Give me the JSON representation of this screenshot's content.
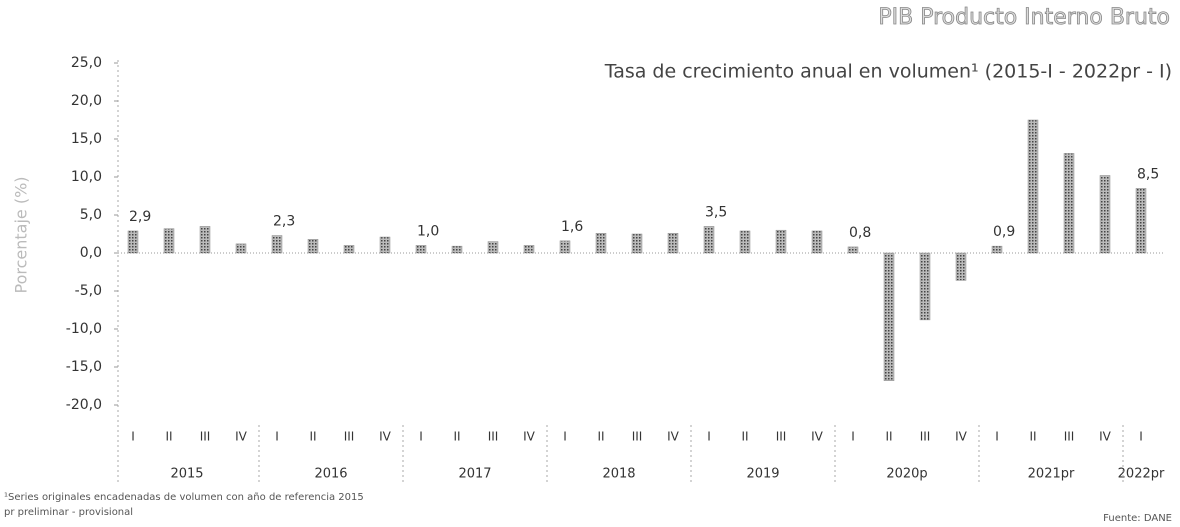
{
  "chart_data": {
    "type": "bar",
    "title": "PIB Producto Interno Bruto",
    "subtitle": "Tasa de crecimiento anual en volumen¹ (2015-I - 2022pr - I)",
    "y_label": "Porcentaje (%)",
    "categories": [
      "I",
      "II",
      "III",
      "IV",
      "I",
      "II",
      "III",
      "IV",
      "I",
      "II",
      "III",
      "IV",
      "I",
      "II",
      "III",
      "IV",
      "I",
      "II",
      "III",
      "IV",
      "I",
      "II",
      "III",
      "IV",
      "I",
      "II",
      "III",
      "IV",
      "I"
    ],
    "year_groups": [
      "2015",
      "2016",
      "2017",
      "2018",
      "2019",
      "2020p",
      "2021pr",
      "2022pr"
    ],
    "values": [
      2.9,
      3.2,
      3.5,
      1.2,
      2.3,
      1.8,
      1.0,
      2.1,
      1.0,
      0.9,
      1.5,
      1.0,
      1.6,
      2.6,
      2.5,
      2.6,
      3.5,
      2.9,
      3.0,
      2.9,
      0.8,
      -16.8,
      -8.8,
      -3.6,
      0.9,
      17.5,
      13.1,
      10.2,
      8.5
    ],
    "value_labels": [
      "2,9",
      null,
      null,
      null,
      "2,3",
      null,
      null,
      null,
      "1,0",
      null,
      null,
      null,
      "1,6",
      null,
      null,
      null,
      "3,5",
      null,
      null,
      null,
      "0,8",
      null,
      null,
      null,
      "0,9",
      null,
      null,
      null,
      "8,5"
    ],
    "color": "#8a8a8a",
    "ylim": [
      -20,
      25
    ],
    "yticks": [
      {
        "value": 25,
        "label": "25,0"
      },
      {
        "value": 20,
        "label": "20,0"
      },
      {
        "value": 15,
        "label": "15,0"
      },
      {
        "value": 10,
        "label": "10,0"
      },
      {
        "value": 5,
        "label": "5,0"
      },
      {
        "value": 0,
        "label": "0,0"
      },
      {
        "value": -5,
        "label": "-5,0"
      },
      {
        "value": -10,
        "label": "-10,0"
      },
      {
        "value": -15,
        "label": "-15,0"
      },
      {
        "value": -20,
        "label": "-20,0"
      }
    ],
    "notes": [
      "¹Series originales encadenadas de volumen con año de referencia 2015",
      "pr preliminar - provisional"
    ],
    "source": "Fuente: DANE"
  }
}
